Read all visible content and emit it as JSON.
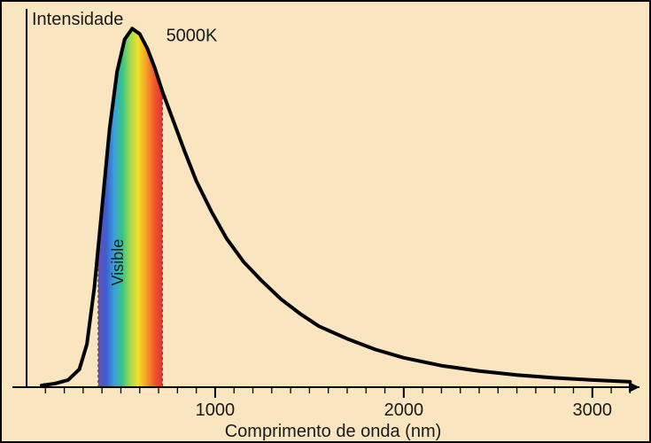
{
  "chart": {
    "type": "line",
    "background_color": "#f9e5c0",
    "border_color": "#000000",
    "y_axis_label": "Intensidade",
    "x_axis_label": "Comprimento de onda (nm)",
    "axis_label_fontsize": 20,
    "axis_label_color": "#1a1a1a",
    "curve_label": "5000K",
    "curve_label_fontsize": 20,
    "curve_color": "#000000",
    "curve_width": 4,
    "axis_color": "#000000",
    "tick_color": "#000000",
    "tick_fontsize": 20,
    "dashed_color": "#555555",
    "xlim": [
      0,
      3250
    ],
    "ylim": [
      0,
      1.05
    ],
    "x_ticks_major": [
      1000,
      2000,
      3000
    ],
    "x_minor_step": 100,
    "visible_band": {
      "label": "Visible",
      "label_fontsize": 18,
      "start_nm": 380,
      "end_nm": 720,
      "colors": [
        "#6a4fb5",
        "#3b5fcf",
        "#3b9fd8",
        "#35c488",
        "#a6d94d",
        "#f4e02a",
        "#f6a028",
        "#ee582c",
        "#e63232"
      ]
    },
    "curve_points_nm_intensity": [
      [
        80,
        0.005
      ],
      [
        150,
        0.01
      ],
      [
        220,
        0.02
      ],
      [
        280,
        0.05
      ],
      [
        320,
        0.12
      ],
      [
        360,
        0.28
      ],
      [
        400,
        0.5
      ],
      [
        440,
        0.72
      ],
      [
        480,
        0.88
      ],
      [
        520,
        0.97
      ],
      [
        560,
        1.0
      ],
      [
        600,
        0.985
      ],
      [
        640,
        0.945
      ],
      [
        680,
        0.89
      ],
      [
        720,
        0.825
      ],
      [
        780,
        0.74
      ],
      [
        840,
        0.655
      ],
      [
        900,
        0.575
      ],
      [
        980,
        0.49
      ],
      [
        1060,
        0.415
      ],
      [
        1150,
        0.35
      ],
      [
        1250,
        0.295
      ],
      [
        1350,
        0.245
      ],
      [
        1450,
        0.205
      ],
      [
        1550,
        0.17
      ],
      [
        1700,
        0.135
      ],
      [
        1850,
        0.105
      ],
      [
        2000,
        0.082
      ],
      [
        2200,
        0.06
      ],
      [
        2400,
        0.045
      ],
      [
        2600,
        0.034
      ],
      [
        2800,
        0.026
      ],
      [
        3000,
        0.02
      ],
      [
        3200,
        0.015
      ]
    ]
  }
}
